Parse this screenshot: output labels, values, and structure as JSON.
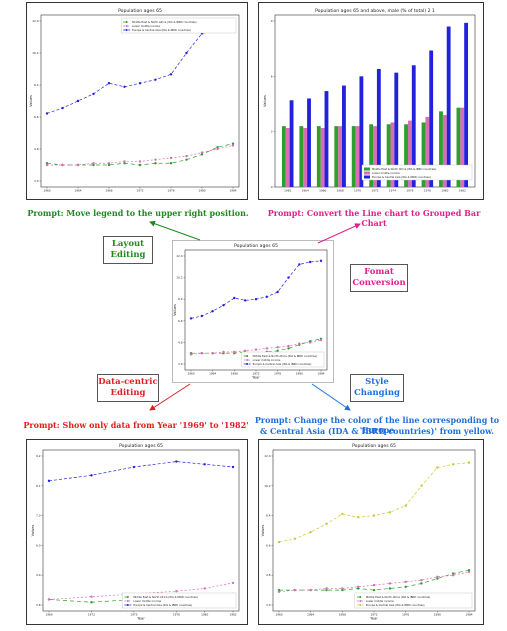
{
  "colors": {
    "green": "#1f8a1f",
    "magenta": "#e0208c",
    "red": "#e02020",
    "blue": "#1e6fd9",
    "yellow": "#c9c938",
    "series_green": "#2ca02c",
    "series_pink": "#d66fb5",
    "series_blue": "#2222dd"
  },
  "prompts": {
    "top_left": "Prompt: Move legend to the upper right position.",
    "top_right": "Prompt: Convert the Line chart to Grouped Bar Chart",
    "bottom_left": "Prompt: Show only data from Year '1969' to '1982'",
    "bottom_right_1": "Prompt: Change the color of the line corresponding to 'Europe",
    "bottom_right_2": "& Central Asia (IDA & IBRD countries)' from yellow."
  },
  "tags": {
    "layout_1": "Layout",
    "layout_2": "Editing",
    "format_1": "Fomat",
    "format_2": "Conversion",
    "data_1": "Data-centric",
    "data_2": "Editing",
    "style_1": "Style",
    "style_2": "Changing"
  },
  "chart_data": [
    {
      "panel": "top-left",
      "type": "line",
      "title": "Population ages 65",
      "xlabel": "",
      "ylabel": "Values",
      "legend_position": "top-right",
      "x": [
        1960,
        1962,
        1964,
        1966,
        1968,
        1970,
        1972,
        1974,
        1976,
        1978,
        1980,
        1982,
        1984
      ],
      "series": [
        {
          "name": "Middle East & North Africa (IDA & IBRD countries)",
          "values": [
            4.0,
            3.9,
            3.9,
            3.9,
            3.9,
            4.0,
            3.9,
            4.0,
            4.0,
            4.2,
            4.5,
            4.9,
            5.1
          ],
          "color": "series_green",
          "dash": "4,3"
        },
        {
          "name": "Lower middle income",
          "values": [
            3.9,
            3.9,
            3.9,
            4.0,
            4.0,
            4.1,
            4.1,
            4.2,
            4.3,
            4.4,
            4.6,
            4.8,
            5.0
          ],
          "color": "series_pink",
          "dash": "2,2"
        },
        {
          "name": "Europe & Central Asia (IDA & IBRD countries)",
          "values": [
            6.8,
            7.1,
            7.5,
            7.9,
            8.5,
            8.3,
            8.5,
            8.7,
            9.0,
            10.2,
            11.3,
            11.5,
            11.6
          ],
          "color": "series_blue",
          "dash": "3,2"
        }
      ],
      "ylim": [
        3,
        12
      ]
    },
    {
      "panel": "top-right",
      "type": "bar",
      "title": "Population ages 65 and above, male (% of total) 2 1",
      "ylabel": "Values",
      "legend_position": "lower-right",
      "categories": [
        "1962",
        "1964",
        "1966",
        "1968",
        "1970",
        "1972",
        "1974",
        "1976",
        "1978",
        "1980",
        "1982"
      ],
      "series": [
        {
          "name": "Middle East & North Africa (IDA & IBRD countries)",
          "values": [
            3.3,
            3.3,
            3.3,
            3.3,
            3.3,
            3.4,
            3.4,
            3.4,
            3.5,
            4.1,
            4.3
          ],
          "color": "series_green"
        },
        {
          "name": "Lower middle income",
          "values": [
            3.2,
            3.2,
            3.2,
            3.3,
            3.3,
            3.3,
            3.5,
            3.6,
            3.8,
            3.9,
            4.3
          ],
          "color": "series_pink"
        },
        {
          "name": "Europe & Central Asia (IDA & IBRD countries)",
          "values": [
            4.7,
            4.8,
            5.2,
            5.5,
            6.0,
            6.4,
            6.2,
            6.6,
            7.4,
            8.7,
            8.9
          ],
          "color": "series_blue"
        }
      ],
      "ylim": [
        0,
        9
      ]
    },
    {
      "panel": "center",
      "type": "line",
      "title": "Population ages 65",
      "ylabel": "Values",
      "xlabel": "Year",
      "legend_position": "lower-right",
      "x": [
        1960,
        1962,
        1964,
        1966,
        1968,
        1970,
        1972,
        1974,
        1976,
        1978,
        1980,
        1982,
        1984
      ],
      "series": [
        {
          "name": "Middle East & North Africa (IDA & IBRD countries)",
          "values": [
            3.9,
            3.9,
            3.9,
            3.9,
            3.9,
            4.0,
            3.9,
            4.0,
            4.1,
            4.3,
            4.6,
            4.9,
            5.1
          ],
          "color": "series_green",
          "dash": "4,3"
        },
        {
          "name": "Lower middle income",
          "values": [
            3.8,
            3.9,
            3.9,
            4.0,
            4.0,
            4.1,
            4.2,
            4.3,
            4.4,
            4.5,
            4.7,
            4.8,
            5.0
          ],
          "color": "series_pink",
          "dash": "2,2"
        },
        {
          "name": "Europe & Central Asia (IDA & IBRD countries)",
          "values": [
            6.8,
            7.0,
            7.4,
            7.9,
            8.5,
            8.3,
            8.4,
            8.6,
            9.0,
            10.2,
            11.3,
            11.5,
            11.6
          ],
          "color": "series_blue",
          "dash": "3,2"
        }
      ],
      "ylim": [
        3,
        12
      ]
    },
    {
      "panel": "bottom-left",
      "type": "line",
      "title": "Population ages 65",
      "ylabel": "Values",
      "xlabel": "Year",
      "legend_position": "lower-right",
      "x": [
        1969,
        1972,
        1975,
        1978,
        1980,
        1982
      ],
      "series": [
        {
          "name": "Middle East & North Africa (IDA & IBRD countries)",
          "values": [
            4.0,
            3.9,
            4.0,
            4.0,
            4.1,
            4.2
          ],
          "color": "series_green",
          "dash": "4,3"
        },
        {
          "name": "Lower middle income",
          "values": [
            4.0,
            4.1,
            4.2,
            4.3,
            4.4,
            4.6
          ],
          "color": "series_pink",
          "dash": "2,2"
        },
        {
          "name": "Europe & Central Asia (IDA & IBRD countries)",
          "values": [
            8.3,
            8.5,
            8.8,
            9.0,
            8.9,
            8.8
          ],
          "color": "series_blue",
          "dash": "3,2"
        }
      ],
      "ylim": [
        3.8,
        9.2
      ]
    },
    {
      "panel": "bottom-right",
      "type": "line",
      "title": "Population ages 65",
      "ylabel": "Values",
      "xlabel": "Year",
      "legend_position": "lower-right",
      "x": [
        1960,
        1962,
        1964,
        1966,
        1968,
        1970,
        1972,
        1974,
        1976,
        1978,
        1980,
        1982,
        1984
      ],
      "series": [
        {
          "name": "Middle East & North Africa (IDA & IBRD countries)",
          "values": [
            3.9,
            3.9,
            3.9,
            3.9,
            3.9,
            4.0,
            3.9,
            4.0,
            4.1,
            4.3,
            4.6,
            4.9,
            5.1
          ],
          "color": "series_green",
          "dash": "4,3"
        },
        {
          "name": "Lower middle income",
          "values": [
            3.8,
            3.9,
            3.9,
            4.0,
            4.0,
            4.1,
            4.2,
            4.3,
            4.4,
            4.5,
            4.7,
            4.8,
            5.0
          ],
          "color": "series_pink",
          "dash": "2,2"
        },
        {
          "name": "Europe & Central Asia (IDA & IBRD countries)",
          "values": [
            6.8,
            7.0,
            7.4,
            7.9,
            8.5,
            8.3,
            8.4,
            8.6,
            9.0,
            10.2,
            11.3,
            11.5,
            11.6
          ],
          "color": "yellow",
          "dash": "3,2"
        }
      ],
      "ylim": [
        3,
        12
      ]
    }
  ]
}
